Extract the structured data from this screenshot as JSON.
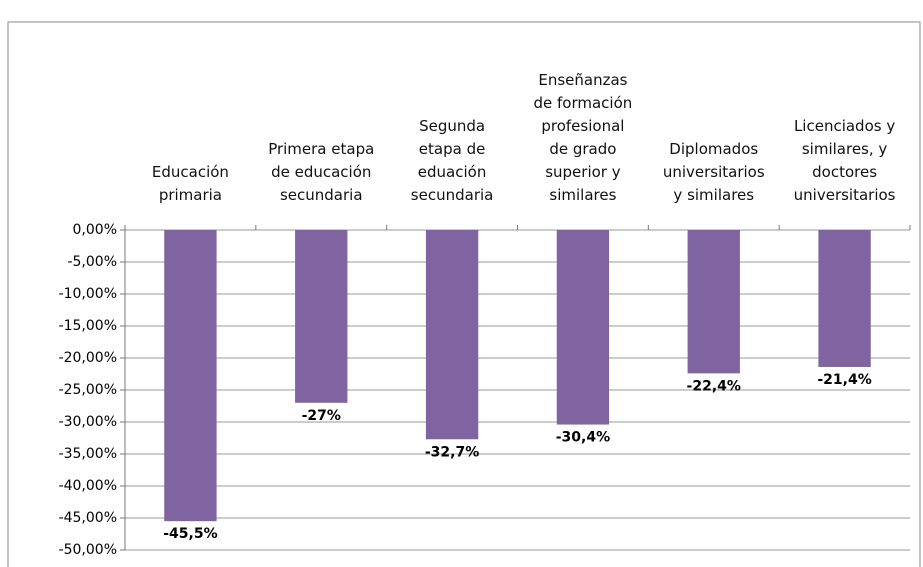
{
  "chart_data": {
    "type": "bar",
    "categories": [
      "Educación\nprimaria",
      "Primera etapa\nde educación\nsecundaria",
      "Segunda\netapa de\neduación\nsecundaria",
      "Enseñanzas\nde formación\nprofesional\nde grado\nsuperior y\nsimilares",
      "Diplomados\nuniversitarios\ny similares",
      "Licenciados y\nsimilares, y\ndoctores\nuniversitarios"
    ],
    "values": [
      -45.5,
      -27,
      -32.7,
      -30.4,
      -22.4,
      -21.4
    ],
    "value_labels": [
      "-45,5%",
      "-27%",
      "-32,7%",
      "-30,4%",
      "-22,4%",
      "-21,4%"
    ],
    "color": "#8064a2",
    "ylim": [
      -50,
      0
    ],
    "yticks": [
      {
        "value": 0,
        "label": "0,00%"
      },
      {
        "value": -5,
        "label": "-5,00%"
      },
      {
        "value": -10,
        "label": "-10,00%"
      },
      {
        "value": -15,
        "label": "-15,00%"
      },
      {
        "value": -20,
        "label": "-20,00%"
      },
      {
        "value": -25,
        "label": "-25,00%"
      },
      {
        "value": -30,
        "label": "-30,00%"
      },
      {
        "value": -35,
        "label": "-35,00%"
      },
      {
        "value": -40,
        "label": "-40,00%"
      },
      {
        "value": -45,
        "label": "-45,00%"
      },
      {
        "value": -50,
        "label": "-50,00%"
      }
    ],
    "grid": true
  }
}
